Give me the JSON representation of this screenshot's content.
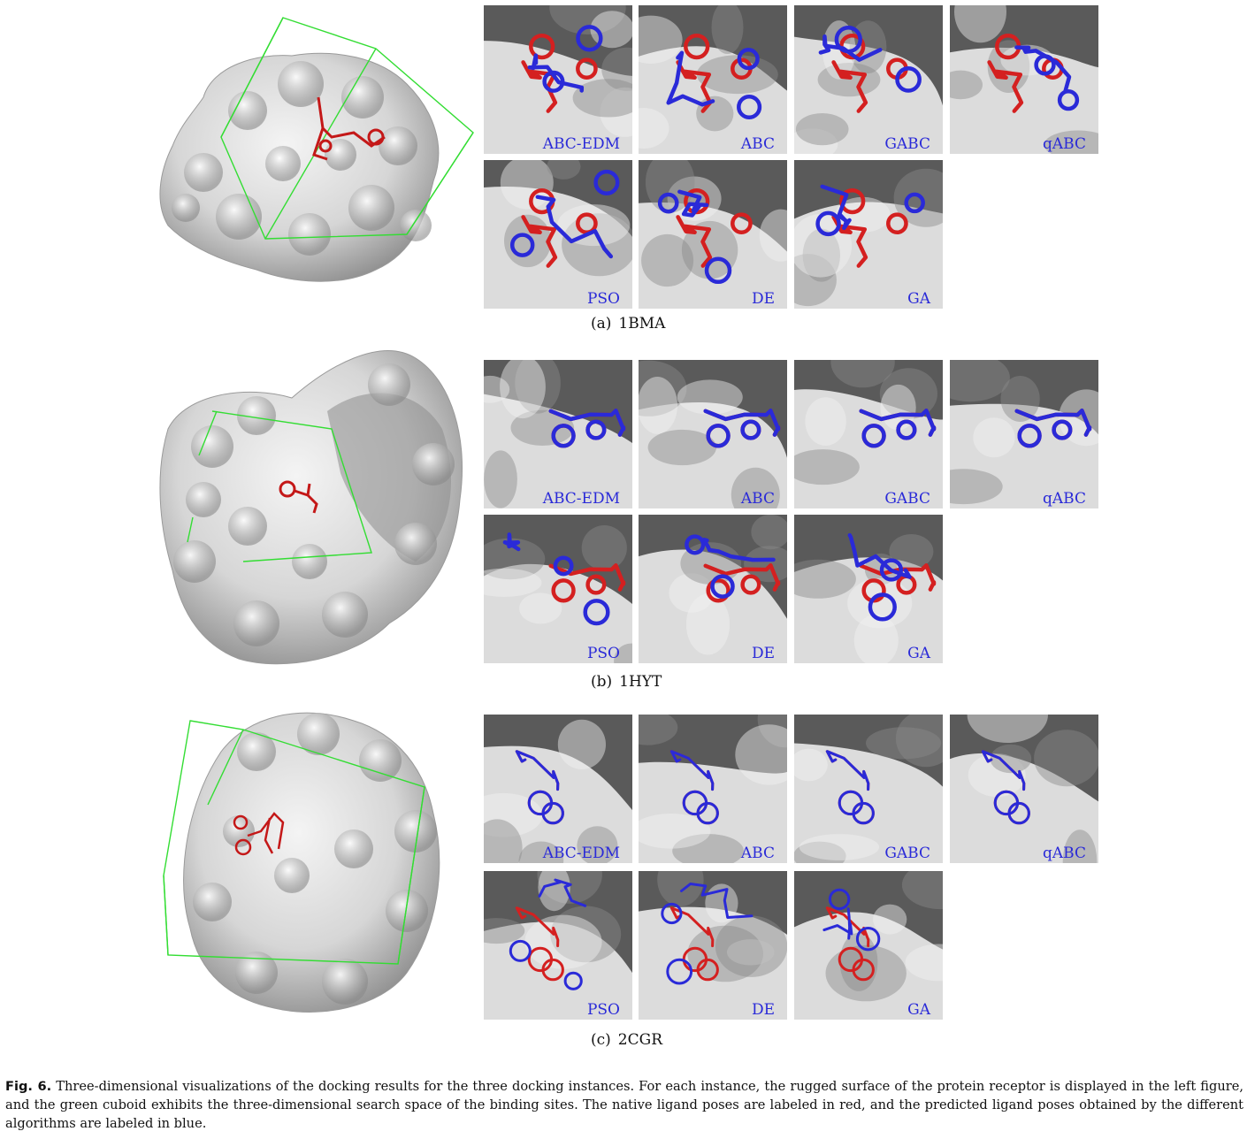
{
  "panels": [
    {
      "id": "a",
      "letter": "(a)",
      "pdb": "1BMA",
      "thumbnails": [
        {
          "label": "ABC-EDM"
        },
        {
          "label": "ABC"
        },
        {
          "label": "GABC"
        },
        {
          "label": "qABC"
        },
        {
          "label": "PSO"
        },
        {
          "label": "DE"
        },
        {
          "label": "GA"
        }
      ]
    },
    {
      "id": "b",
      "letter": "(b)",
      "pdb": "1HYT",
      "thumbnails": [
        {
          "label": "ABC-EDM"
        },
        {
          "label": "ABC"
        },
        {
          "label": "GABC"
        },
        {
          "label": "qABC"
        },
        {
          "label": "PSO"
        },
        {
          "label": "DE"
        },
        {
          "label": "GA"
        }
      ]
    },
    {
      "id": "c",
      "letter": "(c)",
      "pdb": "2CGR",
      "thumbnails": [
        {
          "label": "ABC-EDM"
        },
        {
          "label": "ABC"
        },
        {
          "label": "GABC"
        },
        {
          "label": "qABC"
        },
        {
          "label": "PSO"
        },
        {
          "label": "DE"
        },
        {
          "label": "GA"
        }
      ]
    }
  ],
  "caption": {
    "figure_label": "Fig. 6.",
    "text": "Three-dimensional visualizations of the docking results for the three docking instances. For each instance, the rugged surface of the protein receptor is displayed in the left figure, and the green cuboid exhibits the three-dimensional search space of the binding sites. The native ligand poses are labeled in red, and the predicted ligand poses obtained by the different algorithms are labeled in blue."
  },
  "colors": {
    "native_ligand": "#d42020",
    "predicted_ligand": "#2a2ad8",
    "search_box": "#33dd33",
    "surface_light": "#e6e6e6",
    "surface_dark": "#5a5a5a"
  }
}
